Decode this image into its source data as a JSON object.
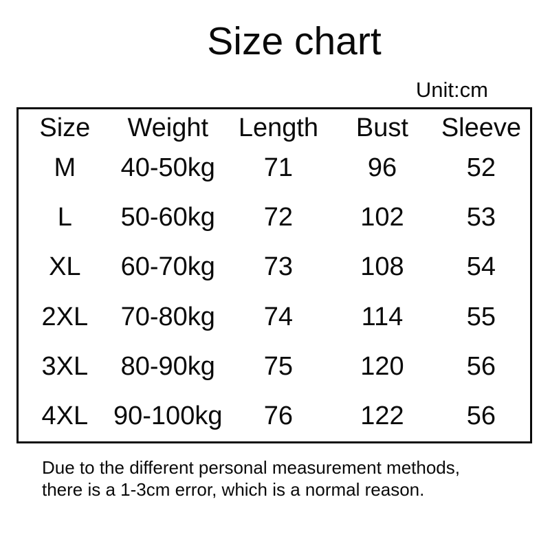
{
  "page": {
    "title": "Size chart",
    "unit_label": "Unit:cm"
  },
  "chart_data": {
    "type": "table",
    "title": "Size chart",
    "unit": "cm",
    "columns": [
      "Size",
      "Weight",
      "Length",
      "Bust",
      "Sleeve"
    ],
    "rows": [
      [
        "M",
        "40-50kg",
        "71",
        "96",
        "52"
      ],
      [
        "L",
        "50-60kg",
        "72",
        "102",
        "53"
      ],
      [
        "XL",
        "60-70kg",
        "73",
        "108",
        "54"
      ],
      [
        "2XL",
        "70-80kg",
        "74",
        "114",
        "55"
      ],
      [
        "3XL",
        "80-90kg",
        "75",
        "120",
        "56"
      ],
      [
        "4XL",
        "90-100kg",
        "76",
        "122",
        "56"
      ]
    ]
  },
  "footer": {
    "line1": "Due to the different personal measurement methods,",
    "line2": "there is a 1-3cm error, which is a normal reason."
  },
  "colors": {
    "background": "#ffffff",
    "text": "#0a0a0a",
    "table_border": "#0a0a0a"
  }
}
